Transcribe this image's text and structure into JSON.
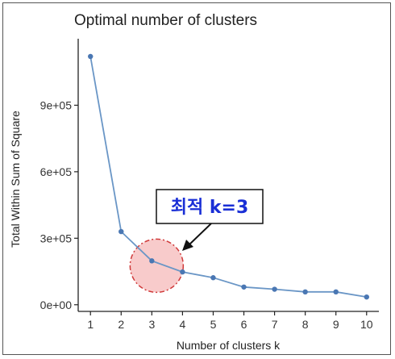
{
  "chart_data": {
    "type": "line",
    "title": "Optimal number of clusters",
    "xlabel": "Number of clusters k",
    "ylabel": "Total Within Sum of Square",
    "x": [
      1,
      2,
      3,
      4,
      5,
      6,
      7,
      8,
      9,
      10
    ],
    "series": [
      {
        "values": [
          1120000,
          330000,
          198000,
          148000,
          122000,
          80000,
          70000,
          58000,
          58000,
          35000
        ]
      }
    ],
    "xlim": [
      0.6,
      10.4
    ],
    "ylim": [
      -30000,
      1200000
    ],
    "yticks": [
      0,
      300000,
      600000,
      900000
    ],
    "ytick_labels": [
      "0e+00",
      "3e+05",
      "6e+05",
      "9e+05"
    ],
    "xtick_labels": [
      "1",
      "2",
      "3",
      "4",
      "5",
      "6",
      "7",
      "8",
      "9",
      "10"
    ],
    "grid": false,
    "line_color": "#6a96c6",
    "point_color": "#4a77b3",
    "annotation": {
      "text": "최적 k=3",
      "highlight_k": 3,
      "highlight_color": "#f4a8a8",
      "highlight_stroke": "#d03a3a",
      "text_color": "#1a2fd6"
    }
  }
}
